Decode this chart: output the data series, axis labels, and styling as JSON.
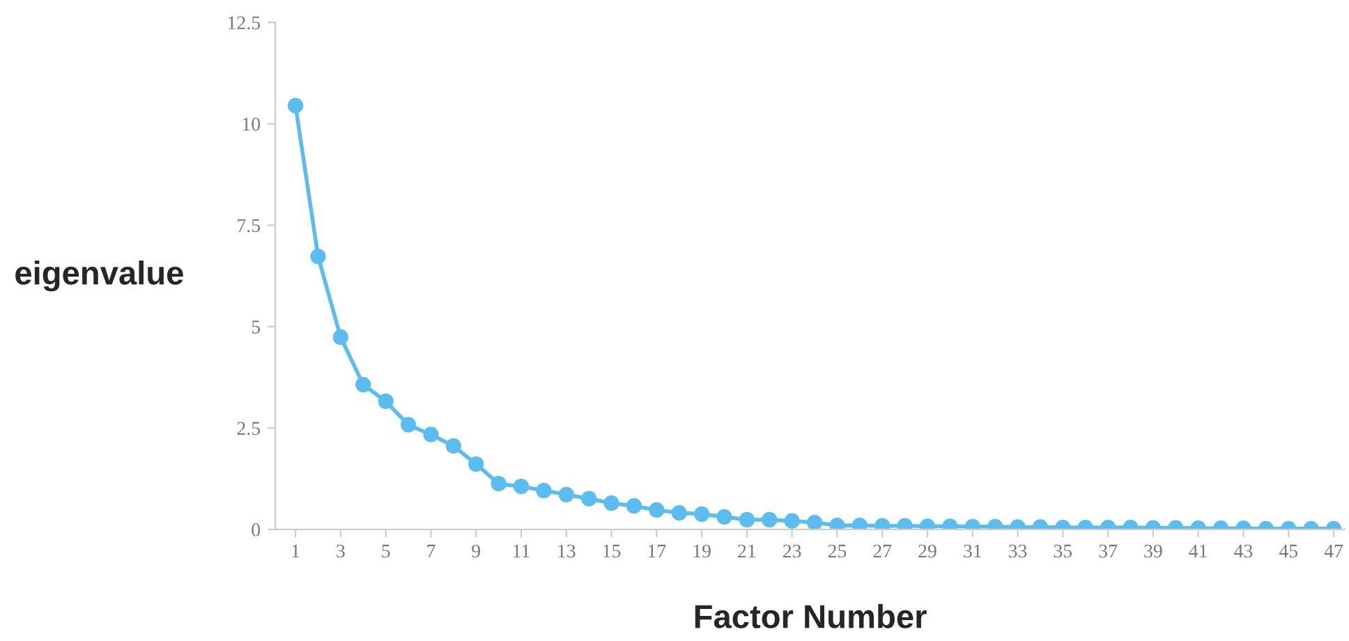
{
  "chart_data": {
    "type": "line",
    "xlabel": "Factor Number",
    "ylabel": "eigenvalue",
    "x": [
      1,
      2,
      3,
      4,
      5,
      6,
      7,
      8,
      9,
      10,
      11,
      12,
      13,
      14,
      15,
      16,
      17,
      18,
      19,
      20,
      21,
      22,
      23,
      24,
      25,
      26,
      27,
      28,
      29,
      30,
      31,
      32,
      33,
      34,
      35,
      36,
      37,
      38,
      39,
      40,
      41,
      42,
      43,
      44,
      45,
      46,
      47
    ],
    "series": [
      {
        "color": "#5bbcf0",
        "values": [
          10.45,
          6.73,
          4.74,
          3.57,
          3.16,
          2.58,
          2.34,
          2.06,
          1.61,
          1.13,
          1.06,
          0.96,
          0.86,
          0.76,
          0.65,
          0.58,
          0.48,
          0.41,
          0.38,
          0.31,
          0.24,
          0.24,
          0.21,
          0.17,
          0.1,
          0.1,
          0.09,
          0.09,
          0.08,
          0.08,
          0.07,
          0.07,
          0.06,
          0.06,
          0.05,
          0.05,
          0.05,
          0.05,
          0.04,
          0.04,
          0.03,
          0.03,
          0.03,
          0.02,
          0.02,
          0.02,
          0.02
        ]
      }
    ],
    "xlim": [
      0.1,
      47.5
    ],
    "xticks": [
      1,
      3,
      5,
      7,
      9,
      11,
      13,
      15,
      17,
      19,
      21,
      23,
      25,
      27,
      29,
      31,
      33,
      35,
      37,
      39,
      41,
      43,
      45,
      47
    ],
    "ylim": [
      0,
      12.5
    ],
    "yticks": [
      0,
      2.5,
      5,
      7.5,
      10,
      12.5
    ],
    "marker": "circle",
    "line_style": "solid",
    "grid": false,
    "legend": false
  }
}
